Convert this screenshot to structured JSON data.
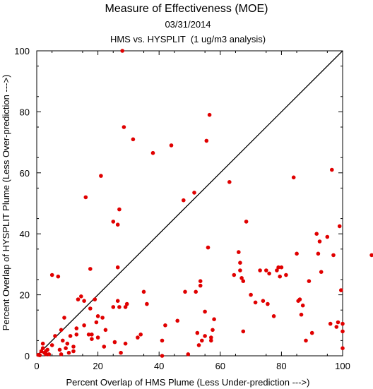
{
  "chart_data": {
    "type": "scatter",
    "title": "Measure of Effectiveness (MOE)",
    "subtitle": "03/31/2014",
    "subtitle2": "HMS vs. HYSPLIT  (1 ug/m3 analysis)",
    "xlabel": "Percent Overlap of HMS Plume (Less Under-prediction --->)",
    "ylabel": "Percent Overlap of HYSPLIT Plume (Less Over-prediction --->)",
    "xlim": [
      0,
      100
    ],
    "ylim": [
      0,
      100
    ],
    "xticks": [
      0,
      20,
      40,
      60,
      80,
      100
    ],
    "yticks": [
      0,
      20,
      40,
      60,
      80,
      100
    ],
    "grid": false,
    "diagonal_reference_line": true,
    "point_color": "#e00000",
    "points": [
      [
        0.5,
        0.3
      ],
      [
        1,
        0.2
      ],
      [
        1.5,
        1.5
      ],
      [
        2,
        2.5
      ],
      [
        2.5,
        1
      ],
      [
        3,
        0.5
      ],
      [
        3,
        1.5
      ],
      [
        2,
        4
      ],
      [
        3.5,
        2
      ],
      [
        4,
        0.5
      ],
      [
        5,
        26.5
      ],
      [
        5,
        3.5
      ],
      [
        6,
        6.5
      ],
      [
        7,
        26
      ],
      [
        7.5,
        2
      ],
      [
        8,
        8.5
      ],
      [
        8,
        0.5
      ],
      [
        8.5,
        5
      ],
      [
        9,
        12.5
      ],
      [
        9.5,
        2.5
      ],
      [
        10,
        4
      ],
      [
        10.5,
        1
      ],
      [
        11,
        6.5
      ],
      [
        12,
        3
      ],
      [
        12,
        1.5
      ],
      [
        13,
        7
      ],
      [
        13.5,
        18.5
      ],
      [
        13,
        9
      ],
      [
        14.5,
        19.5
      ],
      [
        15.5,
        18
      ],
      [
        15.5,
        10
      ],
      [
        16,
        52
      ],
      [
        17,
        7
      ],
      [
        17.5,
        28.5
      ],
      [
        17.5,
        15.5
      ],
      [
        18,
        5.5
      ],
      [
        18,
        7
      ],
      [
        19,
        18.5
      ],
      [
        19.5,
        11
      ],
      [
        20,
        6
      ],
      [
        20,
        13
      ],
      [
        21,
        59
      ],
      [
        21.5,
        12.5
      ],
      [
        22,
        3
      ],
      [
        22.5,
        8.5
      ],
      [
        25,
        44
      ],
      [
        25,
        16
      ],
      [
        25.5,
        4.5
      ],
      [
        26.5,
        29
      ],
      [
        26.5,
        18
      ],
      [
        26.5,
        43
      ],
      [
        27,
        48
      ],
      [
        27,
        16
      ],
      [
        27.5,
        1
      ],
      [
        28,
        100
      ],
      [
        28.5,
        75
      ],
      [
        29,
        16
      ],
      [
        29,
        4
      ],
      [
        29.5,
        17
      ],
      [
        31.5,
        71
      ],
      [
        33,
        6
      ],
      [
        34,
        7
      ],
      [
        35,
        21
      ],
      [
        36,
        17
      ],
      [
        38,
        66.5
      ],
      [
        41,
        0
      ],
      [
        41,
        5
      ],
      [
        42,
        10
      ],
      [
        44,
        69
      ],
      [
        46,
        11.5
      ],
      [
        48,
        51
      ],
      [
        48.5,
        21
      ],
      [
        49.5,
        0.5
      ],
      [
        51.5,
        53.5
      ],
      [
        52,
        21
      ],
      [
        52.5,
        7.5
      ],
      [
        53,
        3.5
      ],
      [
        53.5,
        23
      ],
      [
        53.5,
        24.5
      ],
      [
        54,
        5
      ],
      [
        55,
        14.5
      ],
      [
        55,
        6.5
      ],
      [
        55.5,
        70.5
      ],
      [
        56,
        35.5
      ],
      [
        56.5,
        79
      ],
      [
        57,
        6
      ],
      [
        57,
        5
      ],
      [
        57.5,
        8.5
      ],
      [
        58,
        12
      ],
      [
        63,
        57
      ],
      [
        64.5,
        26.5
      ],
      [
        66,
        34
      ],
      [
        66.5,
        28
      ],
      [
        66.5,
        30.5
      ],
      [
        67,
        25.5
      ],
      [
        67.5,
        24.5
      ],
      [
        67.5,
        8
      ],
      [
        68.5,
        44
      ],
      [
        70,
        20
      ],
      [
        71.5,
        17.5
      ],
      [
        73,
        28
      ],
      [
        74,
        18
      ],
      [
        75,
        28
      ],
      [
        75.5,
        17
      ],
      [
        76,
        27
      ],
      [
        77.5,
        13
      ],
      [
        78.5,
        28
      ],
      [
        79,
        29
      ],
      [
        79.5,
        26
      ],
      [
        80,
        29
      ],
      [
        81.5,
        26.5
      ],
      [
        84,
        58.5
      ],
      [
        85,
        33.5
      ],
      [
        85.5,
        18
      ],
      [
        86,
        18.5
      ],
      [
        86.5,
        13.5
      ],
      [
        87,
        16.5
      ],
      [
        88,
        5
      ],
      [
        89,
        24.5
      ],
      [
        90,
        7.5
      ],
      [
        91.5,
        40
      ],
      [
        92,
        33.5
      ],
      [
        92.5,
        37.5
      ],
      [
        93,
        27.5
      ],
      [
        95,
        39
      ],
      [
        96,
        10.5
      ],
      [
        96.5,
        61
      ],
      [
        97,
        33
      ],
      [
        98,
        9.5
      ],
      [
        98.5,
        11
      ],
      [
        99,
        42.5
      ],
      [
        99.5,
        21.5
      ],
      [
        100,
        2.5
      ],
      [
        100,
        8
      ],
      [
        100,
        10.5
      ],
      [
        109.5,
        33
      ]
    ]
  }
}
